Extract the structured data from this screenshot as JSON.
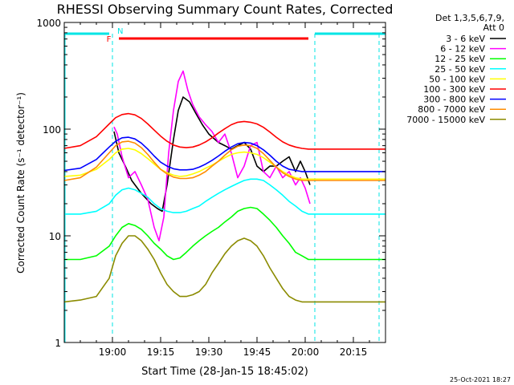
{
  "chart_data": {
    "type": "line",
    "title": "RHESSI Observing Summary Count Rates, Corrected",
    "xlabel": "Start Time (28-Jan-15 18:45:02)",
    "ylabel": "Corrected Count Rate (s⁻¹ detector⁻¹)",
    "x_unit": "minutes since 18:45:02",
    "xlim": [
      0,
      100
    ],
    "ylim": [
      1,
      1000
    ],
    "yscale": "log",
    "x_ticks": [
      {
        "t": 15,
        "label": "19:00"
      },
      {
        "t": 30,
        "label": "19:15"
      },
      {
        "t": 45,
        "label": "19:30"
      },
      {
        "t": 60,
        "label": "19:45"
      },
      {
        "t": 75,
        "label": "20:00"
      },
      {
        "t": 90,
        "label": "20:15"
      }
    ],
    "y_ticks": [
      {
        "v": 1,
        "label": "1"
      },
      {
        "v": 10,
        "label": "10"
      },
      {
        "v": 100,
        "label": "100"
      },
      {
        "v": 1000,
        "label": "1000"
      }
    ],
    "legend_header": [
      "Det 1,3,5,6,7,9,",
      "Att 0"
    ],
    "legend_position": "right",
    "footer": "25-Oct-2021 18:27",
    "annotations": {
      "night_label": "N",
      "flag_label": "F",
      "night_color": "#00e5e5",
      "flag_color": "#ff0000"
    },
    "series": [
      {
        "name": "3 - 6 keV",
        "color": "#000000",
        "t": [
          15.5,
          17,
          19,
          21,
          24,
          27,
          29,
          30.5,
          32,
          34,
          35.5,
          37,
          39,
          41,
          43,
          45,
          48,
          50,
          52,
          54,
          56,
          58,
          60,
          62,
          64,
          66,
          68,
          70,
          72,
          73.5,
          75,
          76.5
        ],
        "y": [
          95,
          60,
          45,
          33,
          25,
          20,
          18,
          17,
          30,
          80,
          150,
          200,
          180,
          140,
          110,
          90,
          75,
          70,
          65,
          70,
          75,
          65,
          45,
          40,
          45,
          45,
          50,
          55,
          40,
          50,
          40,
          30
        ]
      },
      {
        "name": "6 - 12 keV",
        "color": "#ff00ff",
        "t": [
          15.5,
          16.5,
          18,
          20,
          22,
          24,
          26,
          28,
          29.5,
          31,
          32.5,
          34,
          35.5,
          37,
          38.5,
          40,
          42,
          44,
          46,
          48,
          50,
          52,
          54,
          56,
          58,
          60,
          62,
          64,
          66,
          68,
          70,
          72,
          73.5,
          75,
          76.5
        ],
        "y": [
          105,
          90,
          55,
          35,
          40,
          30,
          22,
          12,
          9,
          15,
          60,
          150,
          280,
          350,
          230,
          170,
          130,
          110,
          95,
          75,
          90,
          60,
          35,
          45,
          70,
          75,
          40,
          35,
          45,
          35,
          40,
          30,
          35,
          28,
          20
        ]
      },
      {
        "name": "12 - 25 keV",
        "color": "#00ff00",
        "t": [
          0,
          5,
          10,
          14,
          16,
          18,
          20,
          22,
          24,
          26,
          28,
          30,
          32,
          34,
          36,
          38,
          40,
          42,
          44,
          46,
          48,
          50,
          52,
          54,
          56,
          58,
          60,
          62,
          64,
          66,
          68,
          70,
          72,
          74,
          76,
          80,
          85,
          90,
          95,
          100
        ],
        "y": [
          6,
          6,
          6.5,
          8,
          10,
          12,
          13,
          12.5,
          11.5,
          10,
          8.5,
          7.5,
          6.5,
          6,
          6.2,
          7,
          8,
          9,
          10,
          11,
          12,
          13.5,
          15,
          17,
          18,
          18.5,
          18,
          16,
          14,
          12,
          10,
          8.5,
          7,
          6.5,
          6,
          6,
          6,
          6,
          6,
          6
        ]
      },
      {
        "name": "25 - 50 keV",
        "color": "#00ffff",
        "t": [
          0,
          5,
          10,
          14,
          16,
          18,
          20,
          22,
          24,
          26,
          28,
          30,
          32,
          34,
          36,
          38,
          40,
          42,
          44,
          46,
          48,
          50,
          52,
          54,
          56,
          58,
          60,
          62,
          64,
          66,
          68,
          70,
          72,
          74,
          76,
          80,
          85,
          90,
          95,
          100
        ],
        "y": [
          16,
          16,
          17,
          20,
          24,
          27,
          28,
          27,
          25,
          23,
          20,
          18,
          17,
          16.5,
          16.5,
          17,
          18,
          19,
          21,
          23,
          25,
          27,
          29,
          31,
          33,
          34,
          34,
          33,
          30,
          27,
          24,
          21,
          19,
          17,
          16,
          16,
          16,
          16,
          16,
          16
        ]
      },
      {
        "name": "50 - 100 keV",
        "color": "#ffff00",
        "t": [
          0,
          5,
          10,
          14,
          16,
          18,
          20,
          22,
          24,
          26,
          28,
          30,
          32,
          34,
          36,
          38,
          40,
          42,
          44,
          46,
          48,
          50,
          52,
          54,
          56,
          58,
          60,
          62,
          64,
          66,
          68,
          70,
          72,
          74,
          76,
          80,
          85,
          90,
          95,
          100
        ],
        "y": [
          36,
          37,
          42,
          52,
          60,
          65,
          66,
          64,
          59,
          53,
          47,
          42,
          39,
          37,
          36,
          36.5,
          38,
          40,
          43,
          46,
          50,
          54,
          58,
          60,
          61,
          60,
          58,
          54,
          49,
          44,
          40,
          37,
          35,
          34,
          34,
          34,
          34,
          34,
          34,
          34
        ]
      },
      {
        "name": "100 - 300 keV",
        "color": "#ff0000",
        "t": [
          0,
          5,
          10,
          14,
          16,
          18,
          20,
          22,
          24,
          26,
          28,
          30,
          32,
          34,
          36,
          38,
          40,
          42,
          44,
          46,
          48,
          50,
          52,
          54,
          56,
          58,
          60,
          62,
          64,
          66,
          68,
          70,
          72,
          74,
          76,
          80,
          85,
          90,
          95,
          100
        ],
        "y": [
          66,
          70,
          85,
          112,
          128,
          137,
          140,
          136,
          126,
          112,
          98,
          86,
          77,
          71,
          68,
          67,
          68,
          71,
          76,
          83,
          92,
          101,
          110,
          116,
          118,
          116,
          112,
          104,
          94,
          84,
          76,
          71,
          68,
          66,
          65,
          65,
          65,
          65,
          65,
          65
        ]
      },
      {
        "name": "300 - 800 keV",
        "color": "#0000ff",
        "t": [
          0,
          5,
          10,
          14,
          16,
          18,
          20,
          22,
          24,
          26,
          28,
          30,
          32,
          34,
          36,
          38,
          40,
          42,
          44,
          46,
          48,
          50,
          52,
          54,
          56,
          58,
          60,
          62,
          64,
          66,
          68,
          70,
          72,
          74,
          76,
          80,
          85,
          90,
          95,
          100
        ],
        "y": [
          41,
          43,
          52,
          68,
          77,
          83,
          84,
          81,
          74,
          65,
          56,
          49,
          45,
          42.5,
          41.5,
          41.5,
          42,
          44,
          47,
          51,
          56,
          62,
          68,
          73,
          75,
          74,
          70,
          64,
          57,
          50,
          45,
          42,
          41,
          40,
          40,
          40,
          40,
          40,
          40,
          40
        ]
      },
      {
        "name": "800 - 7000 keV",
        "color": "#ff8c00",
        "t": [
          0,
          5,
          10,
          14,
          16,
          18,
          20,
          22,
          24,
          26,
          28,
          30,
          32,
          34,
          36,
          38,
          40,
          42,
          44,
          46,
          48,
          50,
          52,
          54,
          56,
          58,
          60,
          62,
          64,
          66,
          68,
          70,
          72,
          74,
          76,
          80,
          85,
          90,
          95,
          100
        ],
        "y": [
          33,
          35,
          44,
          60,
          70,
          76,
          77,
          74,
          67,
          58,
          49,
          42,
          38,
          35.5,
          34.5,
          34.5,
          35,
          37,
          40,
          45,
          50,
          57,
          64,
          69,
          71,
          70,
          66,
          59,
          51,
          44,
          39,
          36,
          34,
          33,
          33,
          33,
          33,
          33,
          33,
          33
        ]
      },
      {
        "name": "7000 - 15000 keV",
        "color": "#8b8b00",
        "t": [
          0,
          5,
          10,
          14,
          16,
          18,
          20,
          22,
          24,
          26,
          28,
          30,
          32,
          34,
          36,
          38,
          40,
          42,
          44,
          46,
          48,
          50,
          52,
          54,
          56,
          58,
          60,
          62,
          64,
          66,
          68,
          70,
          72,
          74,
          76,
          80,
          85,
          90,
          95,
          100
        ],
        "y": [
          2.4,
          2.5,
          2.7,
          4,
          6.5,
          8.5,
          10,
          10,
          9,
          7.5,
          6,
          4.5,
          3.5,
          3,
          2.7,
          2.7,
          2.8,
          3,
          3.5,
          4.5,
          5.5,
          6.8,
          8,
          9,
          9.5,
          9,
          8,
          6.5,
          5,
          4,
          3.2,
          2.7,
          2.5,
          2.4,
          2.4,
          2.4,
          2.4,
          2.4,
          2.4,
          2.4
        ]
      }
    ]
  }
}
